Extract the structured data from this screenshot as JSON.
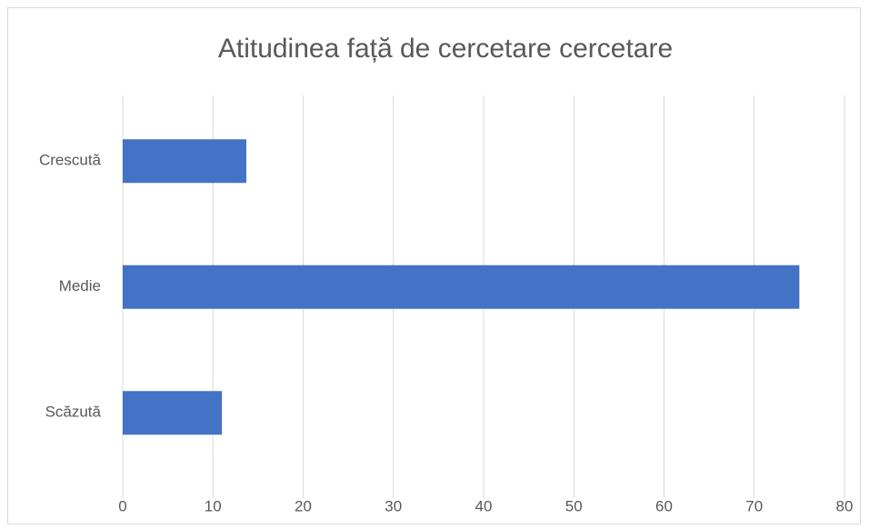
{
  "chart_data": {
    "type": "bar",
    "orientation": "horizontal",
    "title": "Atitudinea față de cercetare cercetare",
    "categories": [
      "Crescută",
      "Medie",
      "Scăzută"
    ],
    "values": [
      13.7,
      75,
      11
    ],
    "color": "#4472c4",
    "xlim": [
      0,
      80
    ],
    "xticks": [
      0,
      10,
      20,
      30,
      40,
      50,
      60,
      70,
      80
    ],
    "grid": true
  }
}
